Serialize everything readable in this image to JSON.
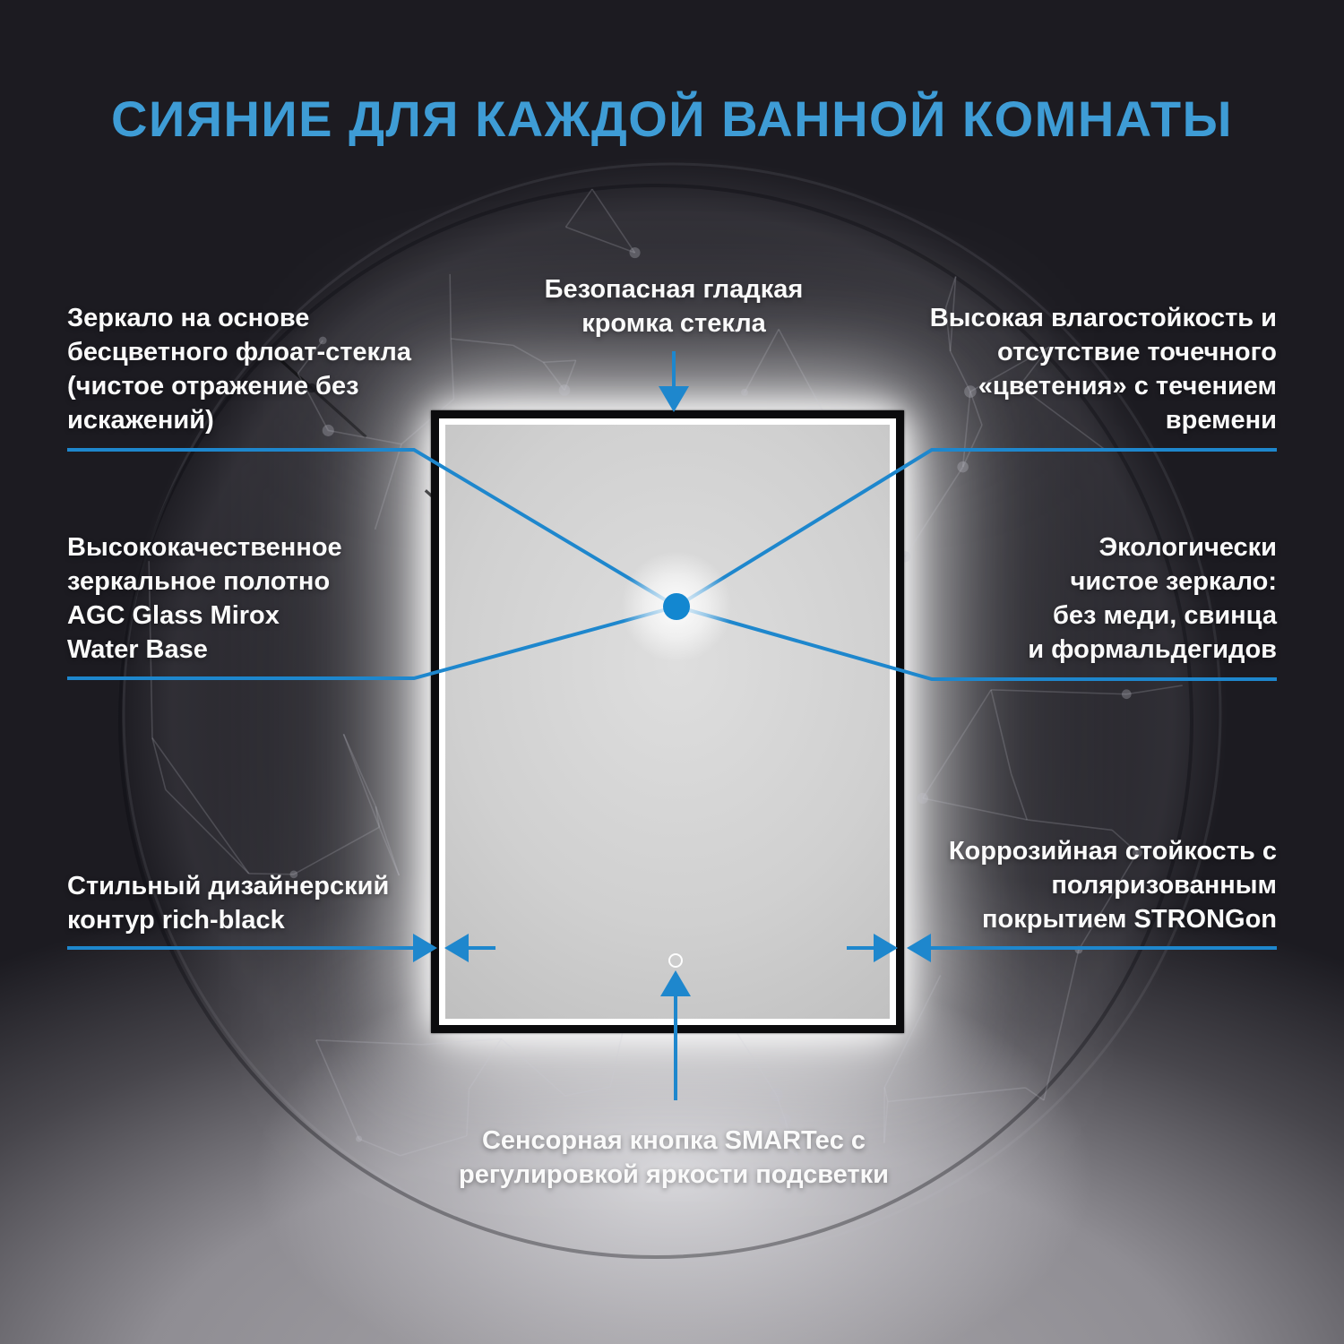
{
  "title": "СИЯНИЕ ДЛЯ КАЖДОЙ ВАННОЙ КОМНАТЫ",
  "colors": {
    "background": "#1c1b21",
    "accent_blue": "#3e9cd5",
    "line_blue": "#1e87cd",
    "dot_blue": "#1387d0",
    "text_white": "#fafafa",
    "frame_black": "#0b0b0d"
  },
  "callouts": {
    "float_glass": {
      "label": "Зеркало на основе\nбесцветного флоат-стекла\n(чистое отражение без\nискажений)"
    },
    "safe_edge": {
      "label": "Безопасная гладкая\nкромка стекла"
    },
    "moisture_resistance": {
      "label": "Высокая влагостойкость и\nотсутствие точечного\n«цветения» с течением\nвремени"
    },
    "mirror_canvas": {
      "label": "Высококачественное\nзеркальное полотно\nAGC Glass Mirox\nWater Base"
    },
    "eco_mirror": {
      "label": "Экологически\nчистое зеркало:\nбез меди, свинца\nи формальдегидов"
    },
    "rich_black_contour": {
      "label": "Стильный дизайнерский\nконтур rich-black"
    },
    "strongon_coating": {
      "label": "Коррозийная стойкость с\nполяризованным\nпокрытием STRONGon"
    },
    "smartec_button": {
      "label": "Сенсорная кнопка SMARTec с\nрегулировкой яркости подсветки"
    }
  }
}
